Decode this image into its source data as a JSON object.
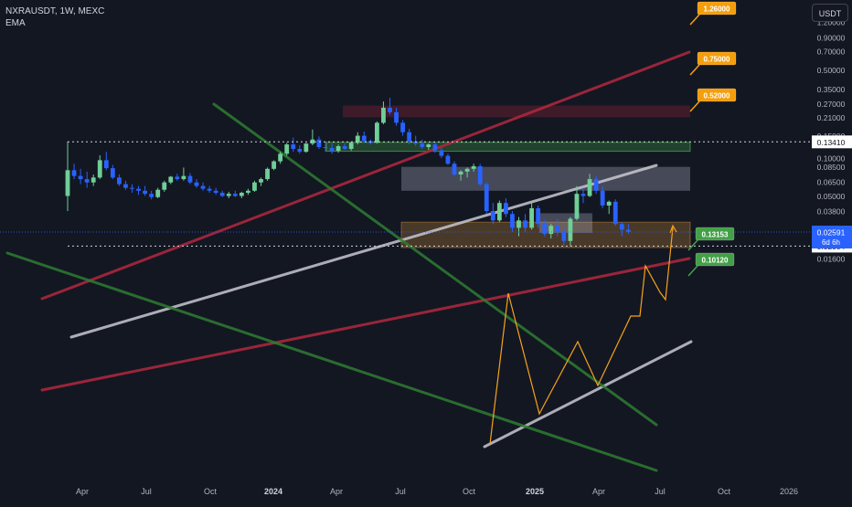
{
  "legend": {
    "symbol_line": "NXRAUSDT, 1W, MEXC",
    "indicator": "EMA"
  },
  "currency": "USDT",
  "colors": {
    "background": "#131722",
    "up": "#6fcf97",
    "down": "#2962ff",
    "channel_red": "#b2283f",
    "trend_green": "#2e7d32",
    "trend_white": "#c8c8d0",
    "projection": "#f7a21b",
    "label_orange": "#f59e0b",
    "label_green": "#43a047",
    "axis_text": "#b2b5be"
  },
  "chart_data": {
    "type": "candlestick",
    "scale": "log",
    "ylim": [
      0.0135,
      2.0
    ],
    "y_ticks": [
      "1.20000",
      "0.90000",
      "0.70000",
      "0.50000",
      "0.35000",
      "0.27000",
      "0.21000",
      "0.15000",
      "0.10000",
      "0.08500",
      "0.06500",
      "0.05000",
      "0.03800",
      "0.02800",
      "0.02000",
      "0.01600"
    ],
    "x_ticks": [
      "Apr",
      "Jul",
      "Oct",
      "2024",
      "Apr",
      "Jul",
      "Oct",
      "2025",
      "Apr",
      "Jul",
      "Oct",
      "2026"
    ],
    "x_ticks_bold": [
      "2024",
      "2025"
    ],
    "current_price": "0.02591",
    "countdown": "6d 6h",
    "price_lines": [
      {
        "value": "0.13410",
        "style": "dotted"
      },
      {
        "value": "0.02004",
        "style": "dotted"
      }
    ],
    "target_labels": [
      {
        "value": "1.26000",
        "color": "orange"
      },
      {
        "value": "0.75000",
        "color": "orange"
      },
      {
        "value": "0.52000",
        "color": "orange"
      },
      {
        "value": "0.13153",
        "color": "green"
      },
      {
        "value": "0.10120",
        "color": "green"
      }
    ],
    "zones": [
      {
        "name": "resistance-zone-top",
        "low": 0.21,
        "high": 0.26,
        "color": "red"
      },
      {
        "name": "support-zone-green",
        "low": 0.113,
        "high": 0.133,
        "color": "green"
      },
      {
        "name": "supply-zone-gray",
        "low": 0.055,
        "high": 0.085,
        "color": "gray"
      },
      {
        "name": "demand-zone-orange",
        "low": 0.0195,
        "high": 0.031,
        "color": "orange"
      },
      {
        "name": "small-zone-gray",
        "low": 0.0255,
        "high": 0.0365,
        "color": "gray"
      }
    ],
    "candles": [
      [
        0.05,
        0.135,
        0.038,
        0.08
      ],
      [
        0.08,
        0.09,
        0.068,
        0.072
      ],
      [
        0.072,
        0.082,
        0.062,
        0.068
      ],
      [
        0.068,
        0.078,
        0.058,
        0.064
      ],
      [
        0.064,
        0.074,
        0.06,
        0.07
      ],
      [
        0.07,
        0.105,
        0.068,
        0.096
      ],
      [
        0.096,
        0.112,
        0.08,
        0.083
      ],
      [
        0.083,
        0.088,
        0.068,
        0.07
      ],
      [
        0.07,
        0.074,
        0.06,
        0.062
      ],
      [
        0.062,
        0.066,
        0.056,
        0.058
      ],
      [
        0.058,
        0.062,
        0.053,
        0.057
      ],
      [
        0.057,
        0.06,
        0.051,
        0.055
      ],
      [
        0.055,
        0.06,
        0.05,
        0.052
      ],
      [
        0.052,
        0.055,
        0.047,
        0.049
      ],
      [
        0.049,
        0.058,
        0.048,
        0.056
      ],
      [
        0.056,
        0.066,
        0.054,
        0.064
      ],
      [
        0.064,
        0.072,
        0.062,
        0.071
      ],
      [
        0.071,
        0.075,
        0.066,
        0.068
      ],
      [
        0.068,
        0.084,
        0.066,
        0.072
      ],
      [
        0.072,
        0.076,
        0.062,
        0.064
      ],
      [
        0.064,
        0.068,
        0.058,
        0.06
      ],
      [
        0.06,
        0.064,
        0.055,
        0.057
      ],
      [
        0.057,
        0.06,
        0.053,
        0.055
      ],
      [
        0.055,
        0.058,
        0.051,
        0.053
      ],
      [
        0.053,
        0.055,
        0.049,
        0.05
      ],
      [
        0.05,
        0.054,
        0.048,
        0.052
      ],
      [
        0.052,
        0.055,
        0.049,
        0.05
      ],
      [
        0.05,
        0.054,
        0.048,
        0.053
      ],
      [
        0.053,
        0.057,
        0.051,
        0.055
      ],
      [
        0.055,
        0.066,
        0.054,
        0.064
      ],
      [
        0.064,
        0.07,
        0.06,
        0.068
      ],
      [
        0.068,
        0.084,
        0.066,
        0.082
      ],
      [
        0.082,
        0.096,
        0.08,
        0.094
      ],
      [
        0.094,
        0.112,
        0.09,
        0.108
      ],
      [
        0.108,
        0.132,
        0.104,
        0.128
      ],
      [
        0.128,
        0.145,
        0.112,
        0.118
      ],
      [
        0.118,
        0.126,
        0.108,
        0.112
      ],
      [
        0.112,
        0.132,
        0.11,
        0.13
      ],
      [
        0.13,
        0.168,
        0.126,
        0.14
      ],
      [
        0.14,
        0.148,
        0.118,
        0.122
      ],
      [
        0.122,
        0.136,
        0.112,
        0.12
      ],
      [
        0.12,
        0.13,
        0.108,
        0.114
      ],
      [
        0.114,
        0.128,
        0.11,
        0.124
      ],
      [
        0.124,
        0.13,
        0.116,
        0.118
      ],
      [
        0.118,
        0.135,
        0.114,
        0.132
      ],
      [
        0.132,
        0.16,
        0.128,
        0.15
      ],
      [
        0.15,
        0.162,
        0.132,
        0.136
      ],
      [
        0.136,
        0.14,
        0.128,
        0.132
      ],
      [
        0.132,
        0.195,
        0.13,
        0.19
      ],
      [
        0.19,
        0.28,
        0.185,
        0.25
      ],
      [
        0.25,
        0.3,
        0.22,
        0.23
      ],
      [
        0.23,
        0.25,
        0.18,
        0.19
      ],
      [
        0.19,
        0.2,
        0.15,
        0.16
      ],
      [
        0.16,
        0.17,
        0.128,
        0.135
      ],
      [
        0.135,
        0.15,
        0.125,
        0.13
      ],
      [
        0.13,
        0.14,
        0.118,
        0.122
      ],
      [
        0.122,
        0.13,
        0.116,
        0.128
      ],
      [
        0.128,
        0.132,
        0.11,
        0.115
      ],
      [
        0.115,
        0.12,
        0.1,
        0.104
      ],
      [
        0.104,
        0.108,
        0.088,
        0.09
      ],
      [
        0.09,
        0.094,
        0.072,
        0.074
      ],
      [
        0.074,
        0.08,
        0.066,
        0.078
      ],
      [
        0.078,
        0.084,
        0.07,
        0.082
      ],
      [
        0.082,
        0.09,
        0.078,
        0.086
      ],
      [
        0.086,
        0.09,
        0.06,
        0.062
      ],
      [
        0.062,
        0.064,
        0.036,
        0.038
      ],
      [
        0.038,
        0.044,
        0.03,
        0.032
      ],
      [
        0.032,
        0.046,
        0.031,
        0.044
      ],
      [
        0.044,
        0.048,
        0.034,
        0.036
      ],
      [
        0.036,
        0.038,
        0.026,
        0.028
      ],
      [
        0.028,
        0.034,
        0.024,
        0.032
      ],
      [
        0.032,
        0.036,
        0.026,
        0.028
      ],
      [
        0.028,
        0.046,
        0.027,
        0.04
      ],
      [
        0.04,
        0.042,
        0.028,
        0.03
      ],
      [
        0.03,
        0.032,
        0.024,
        0.025
      ],
      [
        0.025,
        0.03,
        0.023,
        0.029
      ],
      [
        0.029,
        0.033,
        0.024,
        0.026
      ],
      [
        0.026,
        0.028,
        0.02,
        0.022
      ],
      [
        0.022,
        0.034,
        0.02,
        0.033
      ],
      [
        0.033,
        0.06,
        0.032,
        0.052
      ],
      [
        0.052,
        0.058,
        0.044,
        0.05
      ],
      [
        0.05,
        0.075,
        0.049,
        0.068
      ],
      [
        0.068,
        0.072,
        0.052,
        0.055
      ],
      [
        0.055,
        0.06,
        0.04,
        0.042
      ],
      [
        0.042,
        0.046,
        0.036,
        0.045
      ],
      [
        0.045,
        0.047,
        0.029,
        0.03
      ],
      [
        0.03,
        0.031,
        0.024,
        0.027
      ],
      [
        0.027,
        0.03,
        0.025,
        0.026
      ]
    ]
  }
}
